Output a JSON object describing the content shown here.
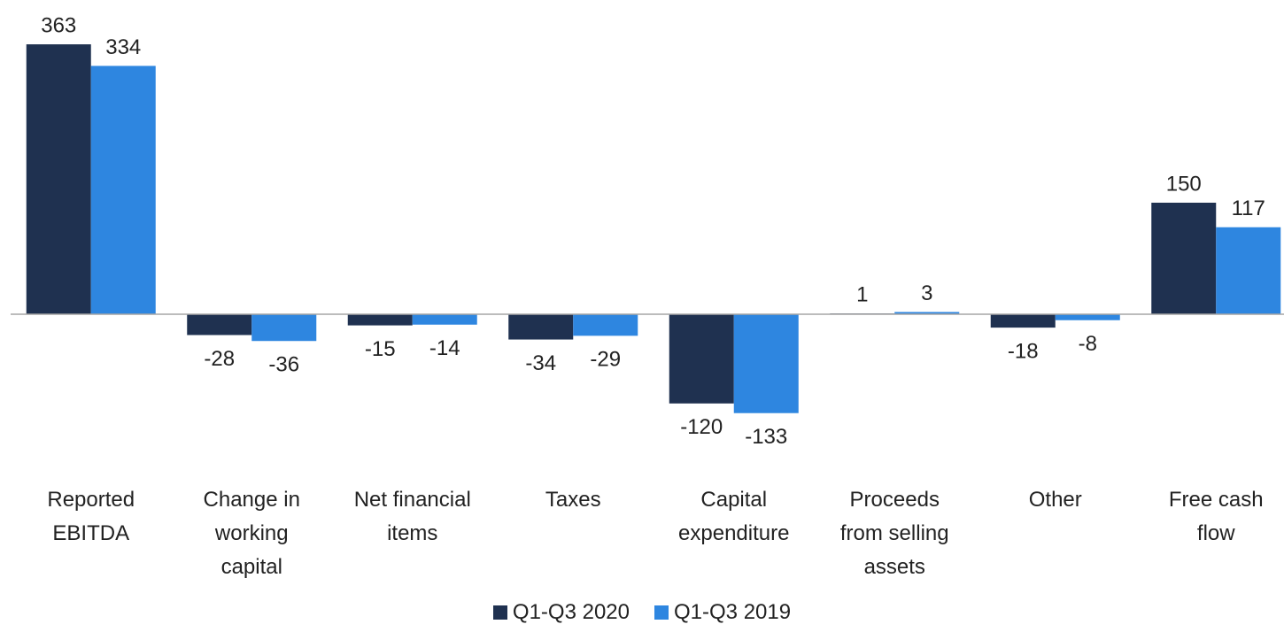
{
  "chart_data": {
    "type": "bar",
    "categories": [
      "Reported EBITDA",
      "Change in working capital",
      "Net financial items",
      "Taxes",
      "Capital expenditure",
      "Proceeds from selling assets",
      "Other",
      "Free cash flow"
    ],
    "series": [
      {
        "name": "Q1-Q3 2020",
        "color": "#1f3150",
        "values": [
          363,
          -28,
          -15,
          -34,
          -120,
          1,
          -18,
          150
        ]
      },
      {
        "name": "Q1-Q3 2019",
        "color": "#2e86e0",
        "values": [
          334,
          -36,
          -14,
          -29,
          -133,
          3,
          -8,
          117
        ]
      }
    ],
    "legend": "bottom"
  }
}
